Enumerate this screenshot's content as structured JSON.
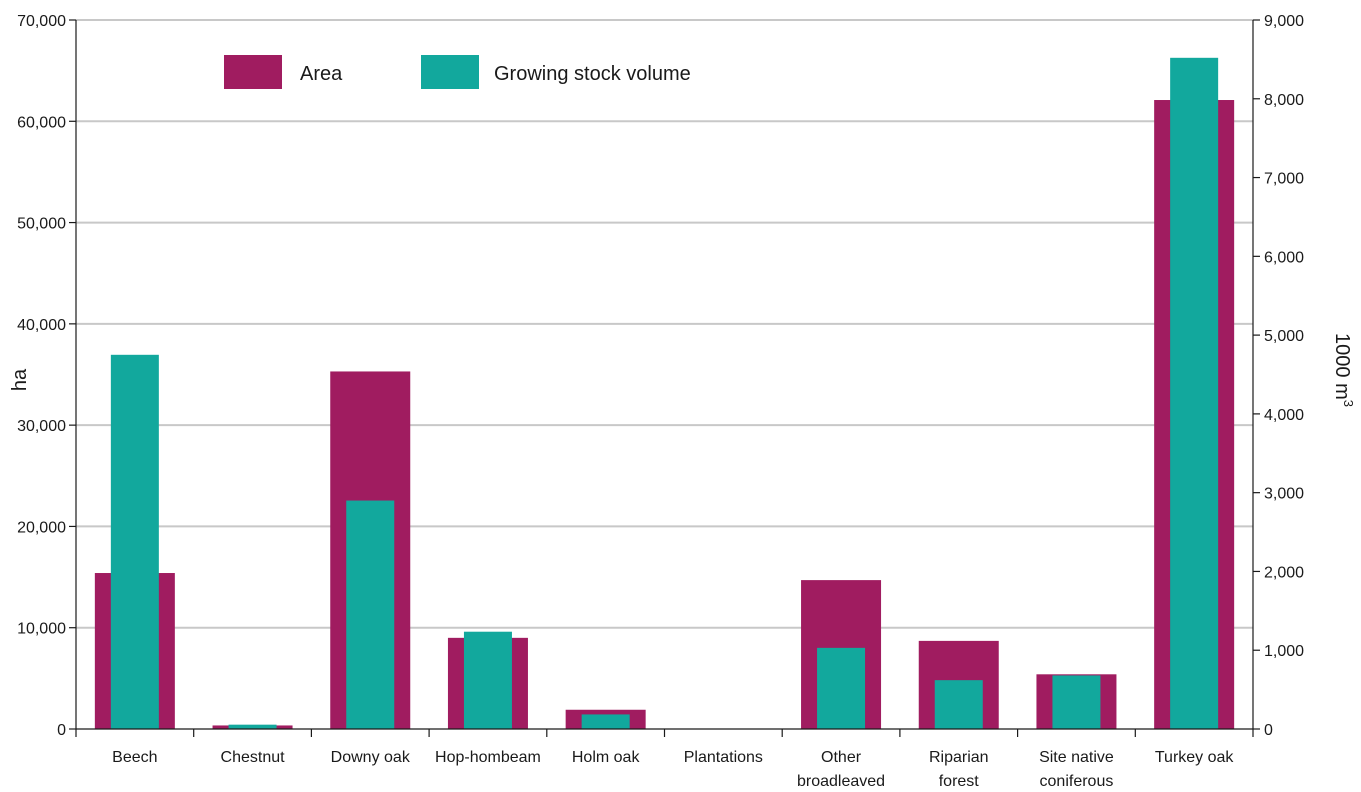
{
  "chart_data": {
    "type": "bar",
    "categories": [
      [
        "Beech"
      ],
      [
        "Chestnut"
      ],
      [
        "Downy oak"
      ],
      [
        "Hop-hombeam"
      ],
      [
        "Holm oak"
      ],
      [
        "Plantations"
      ],
      [
        "Other",
        "broadleaved"
      ],
      [
        "Riparian",
        "forest"
      ],
      [
        "Site native",
        "coniferous"
      ],
      [
        "Turkey oak"
      ]
    ],
    "series": [
      {
        "name": "Area",
        "axis": "left",
        "color": "#a01c60",
        "values": [
          15400,
          350,
          35300,
          9000,
          1900,
          0,
          14700,
          8700,
          5400,
          62100
        ]
      },
      {
        "name": "Growing stock volume",
        "axis": "right",
        "color": "#12a89d",
        "values": [
          4750,
          55,
          2900,
          1235,
          185,
          0,
          1030,
          620,
          680,
          8520
        ]
      }
    ],
    "ylabel": "ha",
    "ylabel_right": "1000 m",
    "ylabel_right_sup": "3",
    "ylim": [
      0,
      70000
    ],
    "ylim_right": [
      0,
      9000
    ],
    "yticks": [
      "0",
      "10,000",
      "20,000",
      "30,000",
      "40,000",
      "50,000",
      "60,000",
      "70,000"
    ],
    "yticks_right": [
      "0",
      "1,000",
      "2,000",
      "3,000",
      "4,000",
      "5,000",
      "6,000",
      "7,000",
      "8,000",
      "9,000"
    ],
    "grid": true,
    "legend": "top-left"
  }
}
